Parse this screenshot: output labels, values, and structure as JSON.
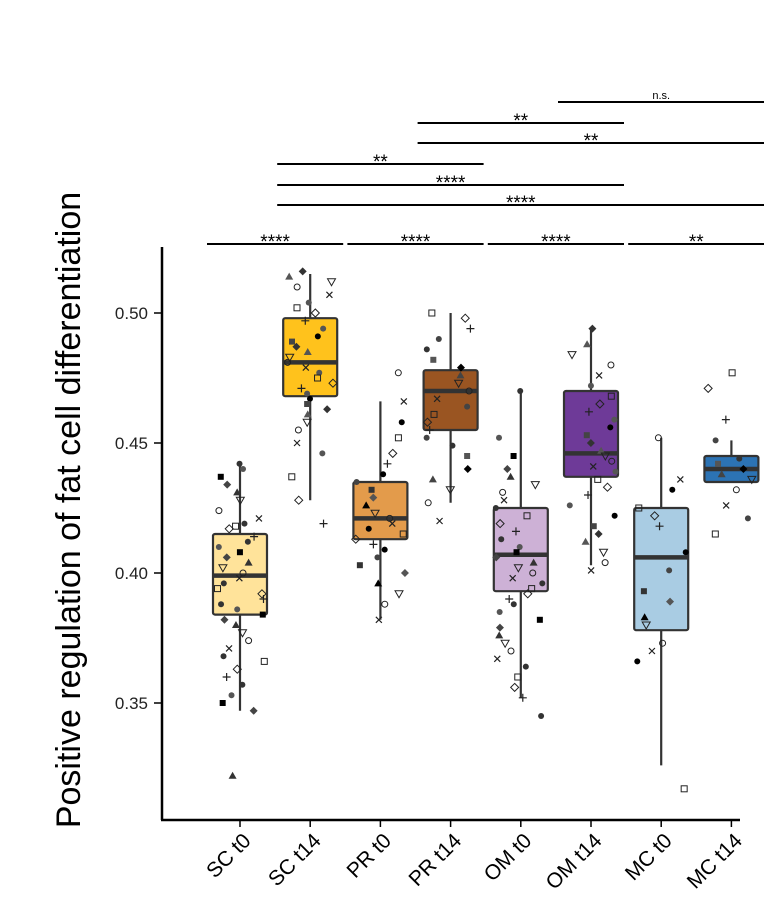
{
  "chart_data": {
    "type": "box",
    "ylabel": "Positive regulation of fat cell differentiation",
    "ylim": [
      0.315,
      0.525
    ],
    "yticks": [
      0.35,
      0.4,
      0.45,
      0.5
    ],
    "ytick_labels": [
      "0.35",
      "0.40",
      "0.45",
      "0.50"
    ],
    "grid": false,
    "legend": "none",
    "categories": [
      "SC t0",
      "SC t14",
      "PR t0",
      "PR t14",
      "OM t0",
      "OM t14",
      "MC t0",
      "MC t14"
    ],
    "colors": [
      "#FFE39A",
      "#FFC21C",
      "#E39B4B",
      "#9A5522",
      "#CDB1D6",
      "#6E3A98",
      "#A9CCE3",
      "#2C73B4"
    ],
    "boxes": [
      {
        "category": "SC t0",
        "min": 0.347,
        "q1": 0.384,
        "median": 0.399,
        "q3": 0.415,
        "max": 0.442
      },
      {
        "category": "SC t14",
        "min": 0.428,
        "q1": 0.468,
        "median": 0.481,
        "q3": 0.498,
        "max": 0.515
      },
      {
        "category": "PR t0",
        "min": 0.382,
        "q1": 0.413,
        "median": 0.421,
        "q3": 0.435,
        "max": 0.466
      },
      {
        "category": "PR t14",
        "min": 0.427,
        "q1": 0.455,
        "median": 0.47,
        "q3": 0.478,
        "max": 0.5
      },
      {
        "category": "OM t0",
        "min": 0.352,
        "q1": 0.393,
        "median": 0.407,
        "q3": 0.425,
        "max": 0.47
      },
      {
        "category": "OM t14",
        "min": 0.403,
        "q1": 0.437,
        "median": 0.446,
        "q3": 0.47,
        "max": 0.494
      },
      {
        "category": "MC t0",
        "min": 0.326,
        "q1": 0.378,
        "median": 0.406,
        "q3": 0.425,
        "max": 0.452
      },
      {
        "category": "MC t14",
        "min": 0.435,
        "q1": 0.435,
        "median": 0.44,
        "q3": 0.445,
        "max": 0.451
      }
    ],
    "points": [
      {
        "category": "SC t0",
        "values": [
          0.442,
          0.44,
          0.437,
          0.434,
          0.431,
          0.428,
          0.424,
          0.421,
          0.419,
          0.418,
          0.417,
          0.414,
          0.412,
          0.41,
          0.408,
          0.406,
          0.404,
          0.402,
          0.4,
          0.398,
          0.396,
          0.394,
          0.392,
          0.39,
          0.388,
          0.386,
          0.384,
          0.382,
          0.38,
          0.377,
          0.374,
          0.371,
          0.368,
          0.366,
          0.363,
          0.36,
          0.357,
          0.353,
          0.35,
          0.347,
          0.322
        ]
      },
      {
        "category": "SC t14",
        "values": [
          0.516,
          0.514,
          0.512,
          0.51,
          0.507,
          0.504,
          0.502,
          0.5,
          0.497,
          0.494,
          0.491,
          0.489,
          0.487,
          0.485,
          0.483,
          0.481,
          0.479,
          0.477,
          0.475,
          0.473,
          0.471,
          0.469,
          0.467,
          0.465,
          0.463,
          0.461,
          0.458,
          0.455,
          0.45,
          0.446,
          0.437,
          0.428,
          0.419
        ]
      },
      {
        "category": "PR t0",
        "values": [
          0.477,
          0.466,
          0.458,
          0.452,
          0.446,
          0.442,
          0.438,
          0.435,
          0.432,
          0.429,
          0.426,
          0.423,
          0.421,
          0.419,
          0.417,
          0.415,
          0.413,
          0.411,
          0.409,
          0.406,
          0.403,
          0.4,
          0.396,
          0.392,
          0.388,
          0.382
        ]
      },
      {
        "category": "PR t14",
        "values": [
          0.5,
          0.498,
          0.494,
          0.49,
          0.486,
          0.482,
          0.479,
          0.476,
          0.473,
          0.47,
          0.467,
          0.464,
          0.461,
          0.458,
          0.455,
          0.452,
          0.449,
          0.445,
          0.44,
          0.436,
          0.432,
          0.427,
          0.42
        ]
      },
      {
        "category": "OM t0",
        "values": [
          0.47,
          0.452,
          0.445,
          0.44,
          0.437,
          0.434,
          0.431,
          0.428,
          0.425,
          0.422,
          0.419,
          0.416,
          0.413,
          0.41,
          0.408,
          0.406,
          0.404,
          0.402,
          0.4,
          0.398,
          0.396,
          0.394,
          0.392,
          0.39,
          0.388,
          0.385,
          0.382,
          0.379,
          0.376,
          0.373,
          0.37,
          0.367,
          0.364,
          0.36,
          0.356,
          0.352,
          0.345
        ]
      },
      {
        "category": "OM t14",
        "values": [
          0.494,
          0.488,
          0.484,
          0.48,
          0.476,
          0.472,
          0.468,
          0.465,
          0.462,
          0.459,
          0.456,
          0.453,
          0.45,
          0.447,
          0.445,
          0.443,
          0.441,
          0.439,
          0.436,
          0.433,
          0.43,
          0.426,
          0.422,
          0.418,
          0.415,
          0.412,
          0.408,
          0.404,
          0.401
        ]
      },
      {
        "category": "MC t0",
        "values": [
          0.452,
          0.436,
          0.432,
          0.425,
          0.422,
          0.418,
          0.408,
          0.401,
          0.393,
          0.389,
          0.383,
          0.38,
          0.373,
          0.37,
          0.366,
          0.317
        ]
      },
      {
        "category": "MC t14",
        "values": [
          0.477,
          0.471,
          0.459,
          0.451,
          0.444,
          0.442,
          0.44,
          0.438,
          0.436,
          0.432,
          0.426,
          0.421,
          0.415
        ]
      }
    ],
    "significance": [
      {
        "from": "SC t0",
        "to": "SC t14",
        "label": "****"
      },
      {
        "from": "PR t0",
        "to": "PR t14",
        "label": "****"
      },
      {
        "from": "OM t0",
        "to": "OM t14",
        "label": "****"
      },
      {
        "from": "MC t0",
        "to": "MC t14",
        "label": "**"
      },
      {
        "from": "SC t14",
        "to": "MC t14",
        "label": "****"
      },
      {
        "from": "SC t14",
        "to": "OM t14",
        "label": "****"
      },
      {
        "from": "SC t14",
        "to": "PR t14",
        "label": "**"
      },
      {
        "from": "PR t14",
        "to": "MC t14",
        "label": "**"
      },
      {
        "from": "PR t14",
        "to": "OM t14",
        "label": "**"
      },
      {
        "from": "OM t14",
        "to": "MC t14",
        "label": "n.s."
      }
    ]
  }
}
